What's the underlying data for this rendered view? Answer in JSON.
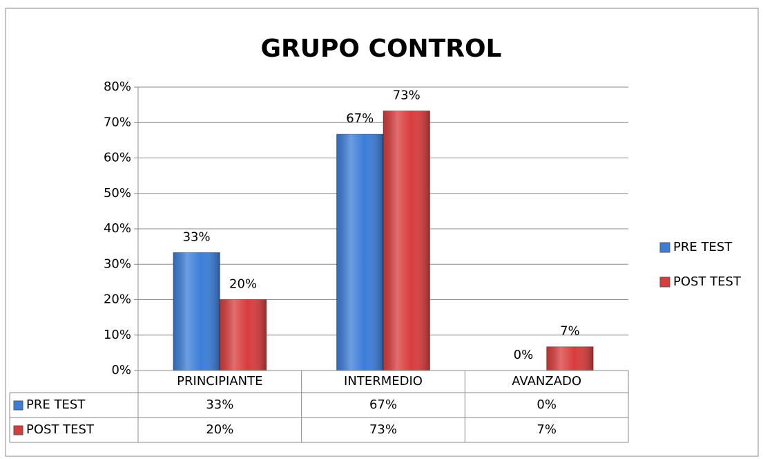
{
  "chart_data": {
    "type": "bar",
    "title": "GRUPO CONTROL",
    "categories": [
      "PRINCIPIANTE",
      "INTERMEDIO",
      "AVANZADO"
    ],
    "series": [
      {
        "name": "PRE TEST",
        "color": "#3b7dd8",
        "values": [
          33.3,
          66.7,
          0
        ],
        "value_labels": [
          "33%",
          "67%",
          "0%"
        ]
      },
      {
        "name": "POST TEST",
        "color": "#d83c3c",
        "values": [
          20,
          73.3,
          6.7
        ],
        "value_labels": [
          "20%",
          "73%",
          "7%"
        ]
      }
    ],
    "ylim": [
      0,
      80
    ],
    "yticks": [
      {
        "value": 0,
        "label": "0%"
      },
      {
        "value": 10,
        "label": "10%"
      },
      {
        "value": 20,
        "label": "20%"
      },
      {
        "value": 30,
        "label": "30%"
      },
      {
        "value": 40,
        "label": "40%"
      },
      {
        "value": 50,
        "label": "50%"
      },
      {
        "value": 60,
        "label": "60%"
      },
      {
        "value": 70,
        "label": "70%"
      },
      {
        "value": 80,
        "label": "80%"
      }
    ],
    "grid": true,
    "legend": "right",
    "data_table": true
  }
}
